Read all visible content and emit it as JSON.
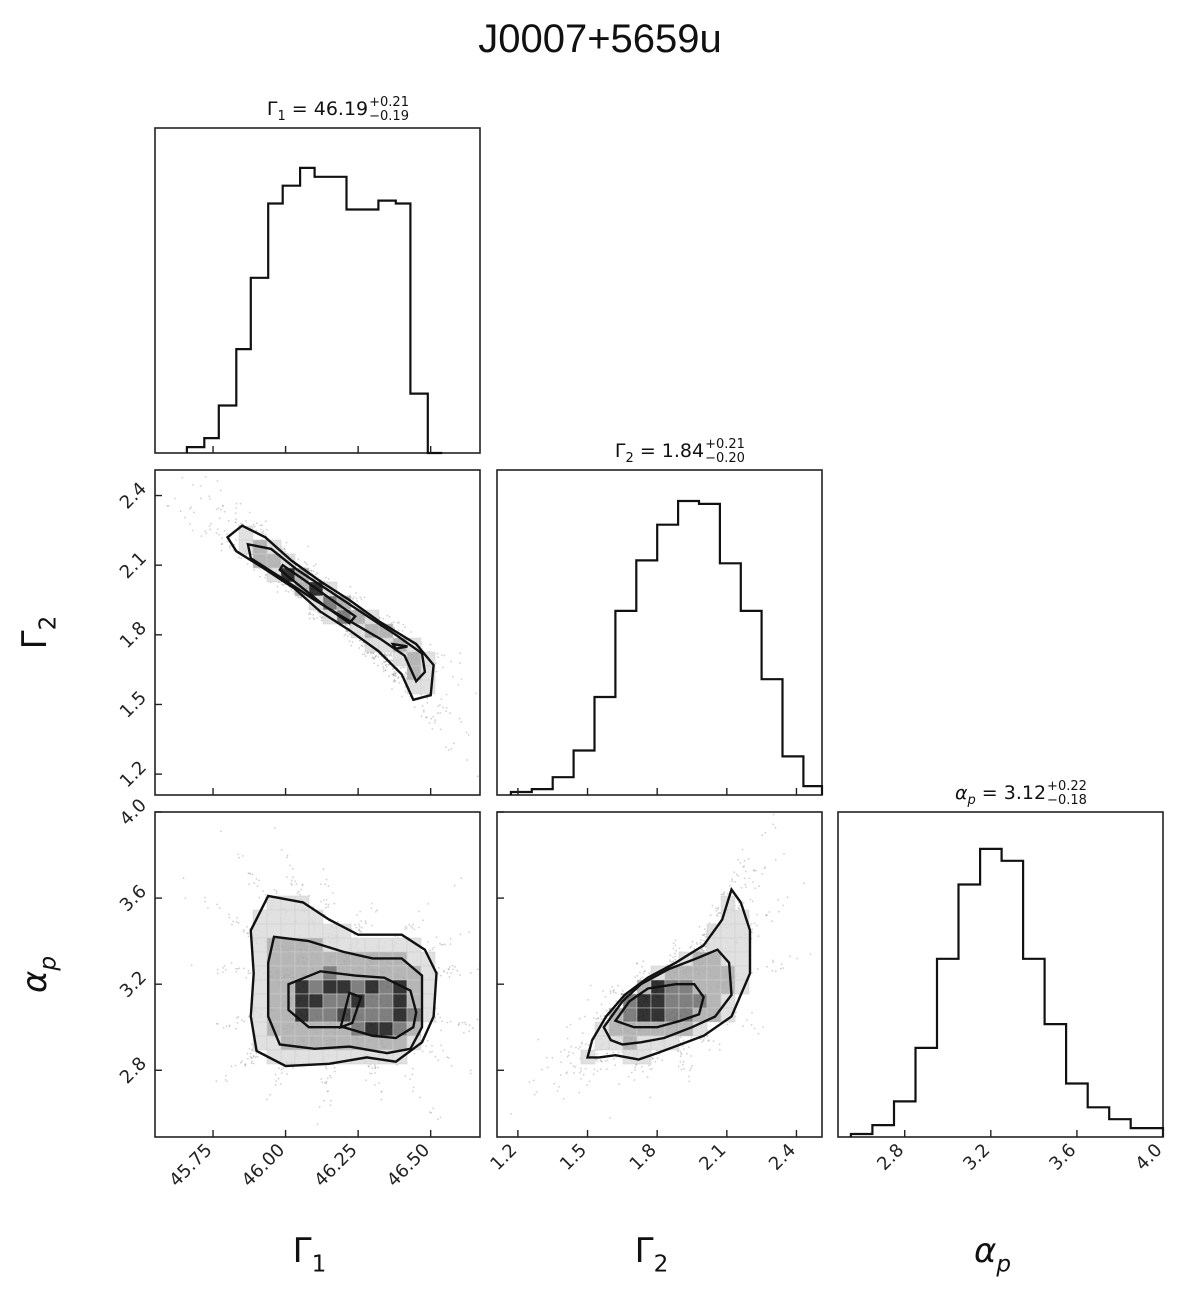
{
  "title": "J0007+5659u",
  "chart_data": {
    "type": "corner",
    "parameters": [
      {
        "key": "g1",
        "label": "Γ1",
        "range": [
          45.55,
          46.67
        ],
        "ticks": [
          45.75,
          46.0,
          46.25,
          46.5
        ],
        "tick_labels": [
          "45.75",
          "46.00",
          "46.25",
          "46.50"
        ]
      },
      {
        "key": "g2",
        "label": "Γ2",
        "range": [
          1.11,
          2.51
        ],
        "ticks": [
          1.2,
          1.5,
          1.8,
          2.1,
          2.4
        ],
        "tick_labels": [
          "1.2",
          "1.5",
          "1.8",
          "2.1",
          "2.4"
        ]
      },
      {
        "key": "ap",
        "label": "αp",
        "range": [
          2.49,
          4.0
        ],
        "ticks": [
          2.8,
          3.2,
          3.6,
          4.0
        ],
        "tick_labels": [
          "2.8",
          "3.2",
          "3.6",
          "4.0"
        ]
      }
    ],
    "diagonal_titles": [
      {
        "symbol": "Γ",
        "sub": "1",
        "italic": false,
        "value": "46.19",
        "plus": "+0.21",
        "minus": "−0.19"
      },
      {
        "symbol": "Γ",
        "sub": "2",
        "italic": false,
        "value": "1.84",
        "plus": "+0.21",
        "minus": "−0.20"
      },
      {
        "symbol": "α",
        "sub": "p",
        "italic": true,
        "value": "3.12",
        "plus": "+0.22",
        "minus": "−0.18"
      }
    ],
    "histograms": [
      {
        "param": "g1",
        "edges": [
          45.66,
          45.72,
          45.77,
          45.83,
          45.88,
          45.94,
          45.99,
          46.05,
          46.1,
          46.16,
          46.21,
          46.27,
          46.32,
          46.38,
          46.43,
          46.49,
          46.54
        ],
        "counts": [
          0.02,
          0.05,
          0.16,
          0.35,
          0.59,
          0.84,
          0.9,
          0.96,
          0.93,
          0.93,
          0.82,
          0.82,
          0.85,
          0.84,
          0.2,
          0.0
        ]
      },
      {
        "param": "g2",
        "edges": [
          1.17,
          1.26,
          1.35,
          1.44,
          1.53,
          1.62,
          1.71,
          1.8,
          1.89,
          1.98,
          2.07,
          2.16,
          2.25,
          2.34,
          2.43,
          2.51
        ],
        "counts": [
          0.01,
          0.02,
          0.06,
          0.15,
          0.33,
          0.62,
          0.79,
          0.91,
          0.99,
          0.98,
          0.78,
          0.62,
          0.39,
          0.13,
          0.03
        ]
      },
      {
        "param": "ap",
        "edges": [
          2.55,
          2.65,
          2.75,
          2.85,
          2.95,
          3.05,
          3.15,
          3.25,
          3.35,
          3.45,
          3.55,
          3.65,
          3.75,
          3.85,
          4.0
        ],
        "counts": [
          0.01,
          0.04,
          0.12,
          0.3,
          0.6,
          0.85,
          0.97,
          0.93,
          0.6,
          0.38,
          0.18,
          0.1,
          0.06,
          0.03
        ]
      }
    ],
    "pairs": [
      {
        "x": "g1",
        "y": "g2",
        "contours": [
          [
            [
              45.85,
              2.27
            ],
            [
              45.8,
              2.22
            ],
            [
              45.83,
              2.16
            ],
            [
              45.92,
              2.09
            ],
            [
              46.03,
              2.0
            ],
            [
              46.12,
              1.9
            ],
            [
              46.22,
              1.82
            ],
            [
              46.32,
              1.73
            ],
            [
              46.4,
              1.63
            ],
            [
              46.44,
              1.52
            ],
            [
              46.5,
              1.54
            ],
            [
              46.51,
              1.67
            ],
            [
              46.45,
              1.76
            ],
            [
              46.32,
              1.86
            ],
            [
              46.22,
              1.95
            ],
            [
              46.12,
              2.03
            ],
            [
              46.02,
              2.12
            ],
            [
              45.93,
              2.22
            ]
          ],
          [
            [
              45.87,
              2.19
            ],
            [
              45.88,
              2.13
            ],
            [
              45.98,
              2.05
            ],
            [
              46.1,
              1.95
            ],
            [
              46.22,
              1.86
            ],
            [
              46.33,
              1.78
            ],
            [
              46.41,
              1.71
            ],
            [
              46.45,
              1.6
            ],
            [
              46.48,
              1.64
            ],
            [
              46.47,
              1.72
            ],
            [
              46.38,
              1.8
            ],
            [
              46.27,
              1.89
            ],
            [
              46.15,
              1.99
            ],
            [
              46.04,
              2.08
            ],
            [
              45.95,
              2.17
            ]
          ],
          [
            [
              45.98,
              2.08
            ],
            [
              46.06,
              2.0
            ],
            [
              46.14,
              1.92
            ],
            [
              46.22,
              1.85
            ],
            [
              46.24,
              1.88
            ],
            [
              46.16,
              1.95
            ],
            [
              46.06,
              2.04
            ],
            [
              45.99,
              2.1
            ]
          ],
          [
            [
              46.37,
              1.76
            ],
            [
              46.42,
              1.75
            ],
            [
              46.38,
              1.74
            ]
          ]
        ]
      },
      {
        "x": "g1",
        "y": "ap",
        "contours": [
          [
            [
              45.94,
              3.61
            ],
            [
              46.06,
              3.58
            ],
            [
              46.15,
              3.5
            ],
            [
              46.25,
              3.43
            ],
            [
              46.4,
              3.43
            ],
            [
              46.48,
              3.36
            ],
            [
              46.52,
              3.25
            ],
            [
              46.51,
              3.05
            ],
            [
              46.47,
              2.93
            ],
            [
              46.38,
              2.84
            ],
            [
              46.28,
              2.86
            ],
            [
              46.15,
              2.83
            ],
            [
              46.0,
              2.82
            ],
            [
              45.9,
              2.89
            ],
            [
              45.88,
              3.05
            ],
            [
              45.89,
              3.25
            ],
            [
              45.88,
              3.45
            ]
          ],
          [
            [
              45.96,
              3.42
            ],
            [
              46.08,
              3.4
            ],
            [
              46.2,
              3.35
            ],
            [
              46.3,
              3.32
            ],
            [
              46.4,
              3.32
            ],
            [
              46.47,
              3.24
            ],
            [
              46.47,
              3.0
            ],
            [
              46.43,
              2.9
            ],
            [
              46.35,
              2.88
            ],
            [
              46.22,
              2.91
            ],
            [
              46.1,
              2.9
            ],
            [
              45.98,
              2.92
            ],
            [
              45.94,
              3.05
            ],
            [
              45.94,
              3.3
            ]
          ],
          [
            [
              46.01,
              3.2
            ],
            [
              46.12,
              3.26
            ],
            [
              46.24,
              3.24
            ],
            [
              46.34,
              3.23
            ],
            [
              46.43,
              3.17
            ],
            [
              46.45,
              3.07
            ],
            [
              46.44,
              3.0
            ],
            [
              46.38,
              2.95
            ],
            [
              46.3,
              2.96
            ],
            [
              46.2,
              3.0
            ],
            [
              46.08,
              3.0
            ],
            [
              46.01,
              3.08
            ]
          ],
          [
            [
              46.19,
              3.0
            ],
            [
              46.22,
              3.16
            ],
            [
              46.26,
              3.14
            ],
            [
              46.23,
              3.02
            ]
          ]
        ]
      },
      {
        "x": "g2",
        "y": "ap",
        "contours": [
          [
            [
              1.5,
              2.86
            ],
            [
              1.52,
              2.94
            ],
            [
              1.58,
              3.05
            ],
            [
              1.66,
              3.15
            ],
            [
              1.76,
              3.23
            ],
            [
              1.88,
              3.3
            ],
            [
              2.0,
              3.38
            ],
            [
              2.08,
              3.5
            ],
            [
              2.12,
              3.64
            ],
            [
              2.16,
              3.58
            ],
            [
              2.2,
              3.45
            ],
            [
              2.2,
              3.25
            ],
            [
              2.12,
              3.05
            ],
            [
              2.0,
              2.96
            ],
            [
              1.9,
              2.92
            ],
            [
              1.8,
              2.88
            ],
            [
              1.72,
              2.85
            ],
            [
              1.62,
              2.87
            ],
            [
              1.55,
              2.86
            ]
          ],
          [
            [
              1.57,
              3.0
            ],
            [
              1.65,
              3.12
            ],
            [
              1.73,
              3.2
            ],
            [
              1.85,
              3.27
            ],
            [
              1.97,
              3.32
            ],
            [
              2.06,
              3.36
            ],
            [
              2.11,
              3.3
            ],
            [
              2.12,
              3.15
            ],
            [
              2.05,
              3.05
            ],
            [
              1.95,
              3.0
            ],
            [
              1.83,
              2.95
            ],
            [
              1.73,
              2.93
            ],
            [
              1.65,
              2.92
            ],
            [
              1.6,
              2.94
            ]
          ],
          [
            [
              1.62,
              3.03
            ],
            [
              1.68,
              3.12
            ],
            [
              1.76,
              3.18
            ],
            [
              1.88,
              3.2
            ],
            [
              1.96,
              3.2
            ],
            [
              2.0,
              3.14
            ],
            [
              1.98,
              3.06
            ],
            [
              1.9,
              3.03
            ],
            [
              1.8,
              3.0
            ],
            [
              1.7,
              3.0
            ]
          ]
        ]
      }
    ],
    "x_axis_labels": [
      {
        "symbol": "Γ",
        "sub": "1",
        "italic": false
      },
      {
        "symbol": "Γ",
        "sub": "2",
        "italic": false
      },
      {
        "symbol": "α",
        "sub": "p",
        "italic": true
      }
    ],
    "y_axis_labels": [
      {
        "symbol": "Γ",
        "sub": "2",
        "italic": false
      },
      {
        "symbol": "α",
        "sub": "p",
        "italic": true
      }
    ]
  }
}
